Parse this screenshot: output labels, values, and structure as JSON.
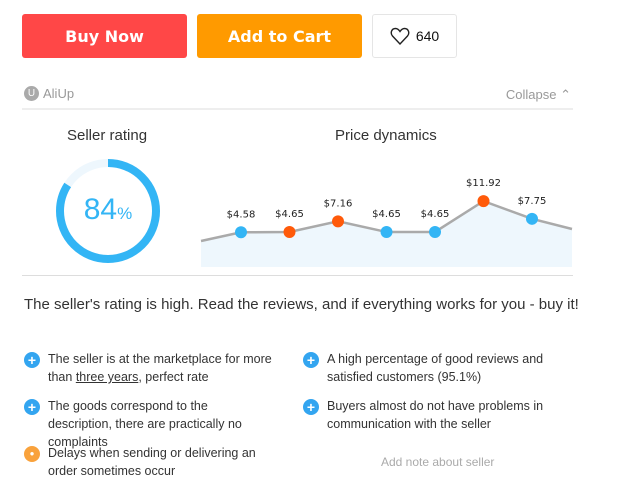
{
  "buttons": {
    "buy_now": "Buy Now",
    "add_to_cart": "Add to Cart",
    "wishlist_count": "640"
  },
  "bar": {
    "brand": "AliUp",
    "collapse": "Collapse"
  },
  "seller_rating": {
    "title": "Seller rating",
    "value": "84",
    "unit": "%",
    "percent": 84,
    "color": "#33b5f5"
  },
  "price": {
    "title": "Price dynamics"
  },
  "chart_data": {
    "type": "line",
    "title": "Price dynamics",
    "labels": [
      "$4.58",
      "$4.65",
      "$7.16",
      "$4.65",
      "$4.65",
      "$11.92",
      "$7.75"
    ],
    "values": [
      4.58,
      4.65,
      7.16,
      4.65,
      4.65,
      11.92,
      7.75
    ],
    "point_colors": [
      "#33b5f5",
      "#ff5a0a",
      "#ff5a0a",
      "#33b5f5",
      "#33b5f5",
      "#ff5a0a",
      "#33b5f5"
    ]
  },
  "summary": "The seller's rating is high. Read the reviews, and if everything works for you - buy it!",
  "items": [
    {
      "pre": "The seller is at the marketplace for more than ",
      "link": "three years",
      "post": ", perfect rate",
      "type": "plus"
    },
    {
      "text": "A high percentage of good reviews and satisfied customers (95.1%)",
      "type": "plus"
    },
    {
      "text": "The goods correspond to the description, there are practically no complaints",
      "type": "plus"
    },
    {
      "text": "Buyers almost do not have problems in communication with the seller",
      "type": "plus"
    },
    {
      "text": "Delays when sending or delivering an order sometimes occur",
      "type": "warn"
    }
  ],
  "add_note": "Add note about seller"
}
